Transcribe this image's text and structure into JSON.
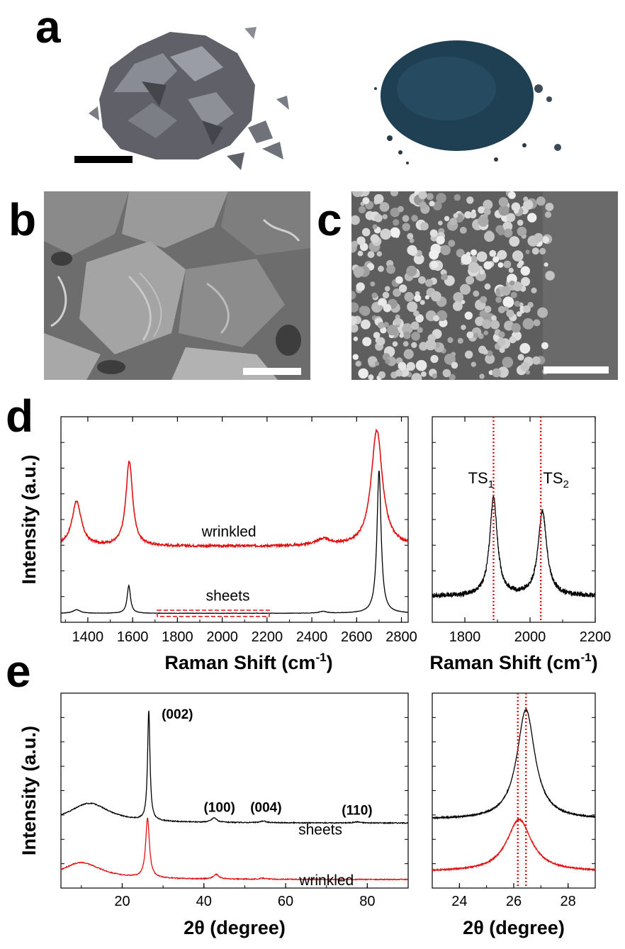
{
  "panels": {
    "a": "a",
    "b": "b",
    "c": "c",
    "d": "d",
    "e": "e"
  },
  "colors": {
    "black_curve": "#000000",
    "red_curve": "#e01010",
    "marker": "#e01010",
    "flake": "#6e6e74",
    "powder": "#1f3f52",
    "sem_gray": "#7a7a7a"
  },
  "chart_data": [
    {
      "id": "d-main",
      "type": "line",
      "xlabel": "Raman Shift (cm-1)",
      "ylabel": "Intensity (a.u.)",
      "xlim": [
        1280,
        2830
      ],
      "ylim": [
        -0.1,
        2.2
      ],
      "xticks": [
        1400,
        1600,
        1800,
        2000,
        2200,
        2400,
        2600,
        2800
      ],
      "y_ticklabels_shown": false,
      "series": [
        {
          "name": "wrinkled",
          "color": "#e01010",
          "baseline": 0.75,
          "noise": 0.012,
          "peaks": [
            {
              "center": 1350,
              "height": 0.5,
              "width": 25
            },
            {
              "center": 1585,
              "height": 0.95,
              "width": 18
            },
            {
              "center": 2450,
              "height": 0.07,
              "width": 40
            },
            {
              "center": 2690,
              "height": 1.3,
              "width": 30
            }
          ]
        },
        {
          "name": "sheets",
          "color": "#000000",
          "baseline": 0.0,
          "noise": 0.002,
          "peaks": [
            {
              "center": 1350,
              "height": 0.04,
              "width": 20
            },
            {
              "center": 1583,
              "height": 0.31,
              "width": 9
            },
            {
              "center": 2450,
              "height": 0.02,
              "width": 20
            },
            {
              "center": 2700,
              "height": 1.6,
              "width": 11
            }
          ]
        }
      ],
      "annotations": [
        {
          "text": "wrinkled",
          "x": 2030,
          "y": 0.86
        },
        {
          "text": "sheets",
          "x": 2025,
          "y": 0.14
        }
      ],
      "highlight_box": {
        "x": [
          1710,
          2210
        ],
        "y": [
          -0.035,
          0.035
        ]
      }
    },
    {
      "id": "d-inset",
      "type": "line",
      "xlabel": "Raman Shift (cm-1)",
      "xlim": [
        1700,
        2200
      ],
      "ylim": [
        -0.06,
        0.65
      ],
      "xticks": [
        1800,
        2000,
        2200
      ],
      "series": [
        {
          "name": "sheets",
          "color": "#000000",
          "baseline": 0.03,
          "noise": 0.008,
          "peaks": [
            {
              "center": 1888,
              "height": 0.34,
              "width": 14
            },
            {
              "center": 2038,
              "height": 0.29,
              "width": 16
            }
          ]
        }
      ],
      "vlines": [
        1888,
        2033
      ],
      "annotations": [
        {
          "text": "TS",
          "sub": "1",
          "x": 1810,
          "y": 0.42
        },
        {
          "text": "TS",
          "sub": "2",
          "x": 2040,
          "y": 0.42
        }
      ]
    },
    {
      "id": "e-main",
      "type": "line",
      "xlabel": "2θ (degree)",
      "ylabel": "Intensity (a.u.)",
      "xlim": [
        5,
        90
      ],
      "ylim": [
        -0.15,
        3.3
      ],
      "xticks": [
        20,
        40,
        60,
        80
      ],
      "series": [
        {
          "name": "sheets",
          "color": "#000000",
          "baseline": 1.0,
          "noise": 0.008,
          "peaks": [
            {
              "center": 12,
              "height": 0.35,
              "width": 6
            },
            {
              "center": 26.5,
              "height": 1.95,
              "width": 0.35
            },
            {
              "center": 42.5,
              "height": 0.08,
              "width": 0.8
            },
            {
              "center": 54.5,
              "height": 0.03,
              "width": 0.8
            },
            {
              "center": 77.5,
              "height": 0.02,
              "width": 0.8
            }
          ]
        },
        {
          "name": "wrinkled",
          "color": "#e01010",
          "baseline": 0.0,
          "noise": 0.008,
          "peaks": [
            {
              "center": 10,
              "height": 0.3,
              "width": 6
            },
            {
              "center": 26.2,
              "height": 1.05,
              "width": 0.55
            },
            {
              "center": 43,
              "height": 0.08,
              "width": 0.8
            },
            {
              "center": 54.5,
              "height": 0.02,
              "width": 0.8
            }
          ]
        }
      ],
      "peak_labels": [
        {
          "text": "(002)",
          "x": 33.5,
          "y": 2.85
        },
        {
          "text": "(100)",
          "x": 43.8,
          "y": 1.2
        },
        {
          "text": "(004)",
          "x": 55.2,
          "y": 1.2
        },
        {
          "text": "(110)",
          "x": 77.5,
          "y": 1.15
        }
      ],
      "annotations": [
        {
          "text": "sheets",
          "x": 68.5,
          "y": 0.8
        },
        {
          "text": "wrinkled",
          "x": 70,
          "y": -0.1
        }
      ]
    },
    {
      "id": "e-inset",
      "type": "line",
      "xlabel": "2θ (degree)",
      "xlim": [
        23,
        29
      ],
      "ylim": [
        -0.25,
        3.3
      ],
      "xticks": [
        24,
        26,
        28
      ],
      "series": [
        {
          "name": "sheets",
          "color": "#000000",
          "baseline": 1.0,
          "noise": 0.01,
          "peaks": [
            {
              "center": 26.45,
              "height": 2.0,
              "width": 0.4
            }
          ]
        },
        {
          "name": "wrinkled",
          "color": "#e01010",
          "baseline": 0.05,
          "noise": 0.01,
          "peaks": [
            {
              "center": 26.2,
              "height": 0.95,
              "width": 0.55
            }
          ]
        }
      ],
      "vlines": [
        26.15,
        26.45
      ]
    }
  ]
}
